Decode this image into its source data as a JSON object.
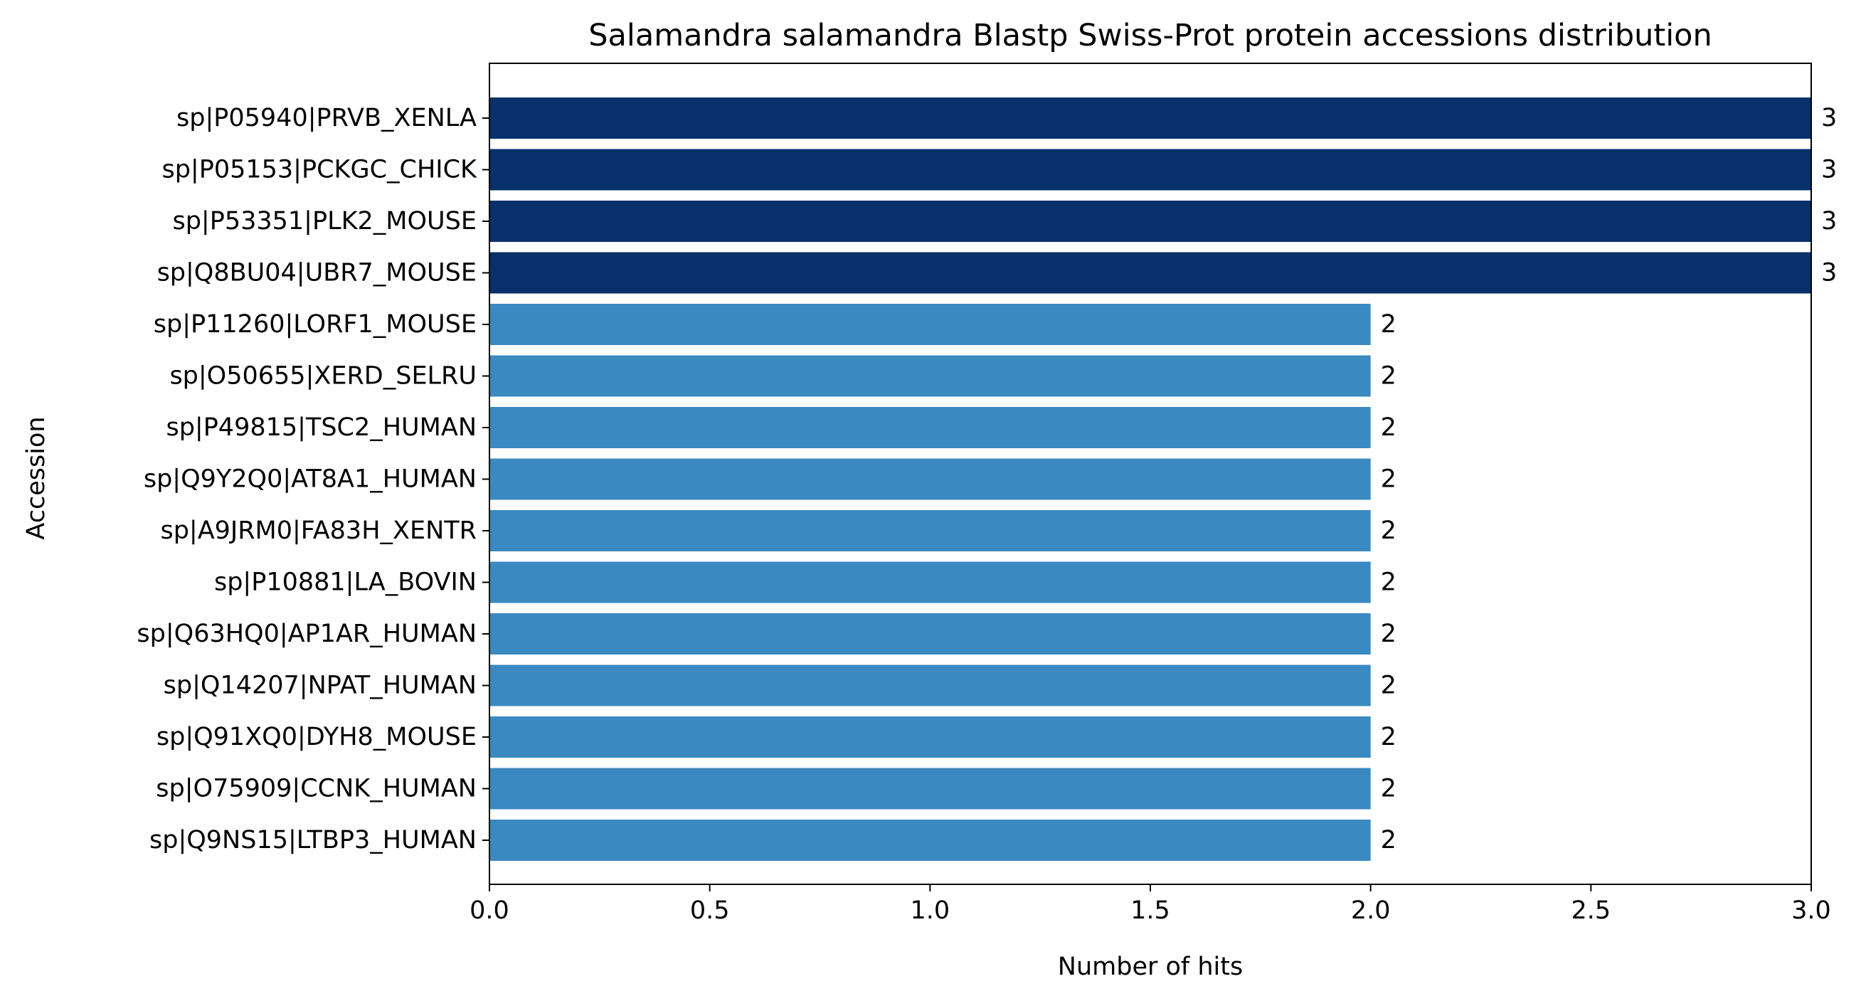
{
  "chart_data": {
    "type": "bar",
    "orientation": "horizontal",
    "title": "Salamandra salamandra Blastp Swiss-Prot protein accessions distribution",
    "xlabel": "Number of hits",
    "ylabel": "Accession",
    "xlim": [
      0,
      3
    ],
    "xticks": [
      "0.0",
      "0.5",
      "1.0",
      "1.5",
      "2.0",
      "2.5",
      "3.0"
    ],
    "grid": false,
    "colors": {
      "high": "#08306b",
      "normal": "#3a89c1"
    },
    "categories": [
      "sp|P05940|PRVB_XENLA",
      "sp|P05153|PCKGC_CHICK",
      "sp|P53351|PLK2_MOUSE",
      "sp|Q8BU04|UBR7_MOUSE",
      "sp|P11260|LORF1_MOUSE",
      "sp|O50655|XERD_SELRU",
      "sp|P49815|TSC2_HUMAN",
      "sp|Q9Y2Q0|AT8A1_HUMAN",
      "sp|A9JRM0|FA83H_XENTR",
      "sp|P10881|LA_BOVIN",
      "sp|Q63HQ0|AP1AR_HUMAN",
      "sp|Q14207|NPAT_HUMAN",
      "sp|Q91XQ0|DYH8_MOUSE",
      "sp|O75909|CCNK_HUMAN",
      "sp|Q9NS15|LTBP3_HUMAN"
    ],
    "values": [
      3,
      3,
      3,
      3,
      2,
      2,
      2,
      2,
      2,
      2,
      2,
      2,
      2,
      2,
      2
    ]
  }
}
